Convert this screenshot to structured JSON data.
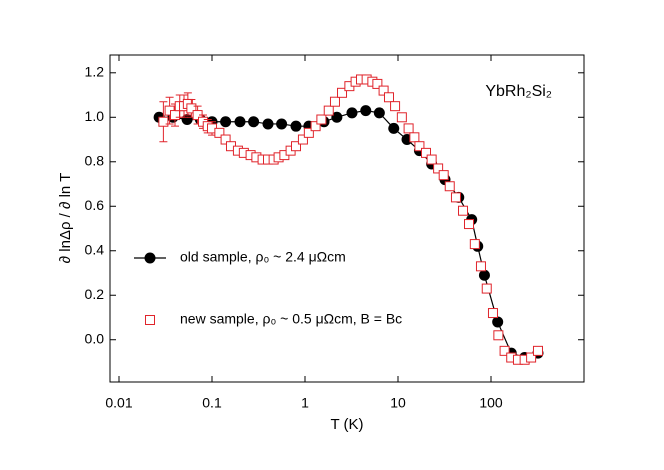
{
  "chart_data": {
    "type": "scatter",
    "annotation": "YbRh₂Si₂",
    "xlabel": "T (K)",
    "ylabel": "∂ lnΔρ / ∂ ln T",
    "xscale": "log",
    "xlim": [
      0.008,
      1000
    ],
    "xticks": [
      0.01,
      0.1,
      1,
      10,
      100
    ],
    "ylim": [
      -0.19,
      1.28
    ],
    "yticks": [
      {
        "value": 0,
        "label": "0.0"
      },
      0.2,
      0.4,
      0.6,
      0.8,
      {
        "value": 1,
        "label": "1.0"
      },
      1.2
    ],
    "legend": "left",
    "series": [
      {
        "name": "old sample, ρ₀ ~ 2.4 μΩcm",
        "color": "#000000",
        "marker": "circle",
        "line": true,
        "x": [
          0.027,
          0.038,
          0.054,
          0.075,
          0.1,
          0.14,
          0.2,
          0.28,
          0.4,
          0.56,
          0.8,
          1.1,
          1.6,
          2.2,
          3.2,
          4.5,
          6.3,
          9,
          12.5,
          17,
          23,
          32,
          45,
          62,
          72,
          85,
          118,
          165,
          230,
          320
        ],
        "values": [
          1.0,
          1.0,
          0.99,
          0.99,
          0.98,
          0.98,
          0.98,
          0.98,
          0.97,
          0.97,
          0.96,
          0.96,
          0.98,
          1.0,
          1.02,
          1.03,
          1.02,
          0.95,
          0.9,
          0.85,
          0.79,
          0.72,
          0.64,
          0.54,
          0.42,
          0.29,
          0.08,
          -0.06,
          -0.08,
          -0.06
        ]
      },
      {
        "name": "new sample, ρ₀ ~ 0.5 μΩcm, B = Bc",
        "color": "#e0242b",
        "marker": "square",
        "line": false,
        "x": [
          0.03,
          0.035,
          0.04,
          0.045,
          0.05,
          0.055,
          0.06,
          0.07,
          0.08,
          0.09,
          0.1,
          0.12,
          0.14,
          0.16,
          0.19,
          0.22,
          0.26,
          0.3,
          0.35,
          0.4,
          0.46,
          0.52,
          0.6,
          0.7,
          0.8,
          0.95,
          1.1,
          1.3,
          1.5,
          1.8,
          2.1,
          2.5,
          3,
          3.5,
          4,
          4.6,
          5.3,
          6,
          7,
          8,
          9.3,
          11,
          13,
          15,
          17,
          20,
          23,
          27,
          31,
          36,
          42,
          50,
          58,
          67,
          78,
          90,
          105,
          120,
          140,
          165,
          195,
          230,
          270,
          320
        ],
        "values": [
          0.98,
          1.03,
          1.01,
          1.05,
          1.05,
          1.06,
          1.04,
          1.01,
          0.98,
          0.96,
          0.95,
          0.93,
          0.9,
          0.87,
          0.85,
          0.84,
          0.83,
          0.82,
          0.81,
          0.81,
          0.81,
          0.82,
          0.83,
          0.85,
          0.87,
          0.9,
          0.93,
          0.96,
          0.99,
          1.03,
          1.07,
          1.11,
          1.14,
          1.16,
          1.17,
          1.17,
          1.16,
          1.15,
          1.12,
          1.09,
          1.05,
          1.0,
          0.95,
          0.91,
          0.87,
          0.84,
          0.81,
          0.77,
          0.74,
          0.69,
          0.64,
          0.58,
          0.52,
          0.43,
          0.33,
          0.23,
          0.12,
          0.02,
          -0.05,
          -0.08,
          -0.09,
          -0.09,
          -0.08,
          -0.05
        ],
        "errors": [
          0.09,
          0.06,
          0.05,
          0.05,
          0.05,
          0.05,
          0.04,
          0.04,
          0.03,
          0.03,
          0.03,
          null,
          null,
          null,
          null,
          null,
          null,
          null,
          null,
          null,
          null,
          null,
          null,
          null,
          null,
          null,
          null,
          null,
          null,
          null,
          null,
          null,
          null,
          null,
          null,
          null,
          null,
          null,
          null,
          null,
          null,
          null,
          null,
          null,
          null,
          null,
          null,
          null,
          null,
          null,
          null,
          null,
          null,
          null,
          null,
          null,
          null,
          null,
          null,
          null,
          null,
          null,
          null,
          null
        ]
      }
    ]
  }
}
